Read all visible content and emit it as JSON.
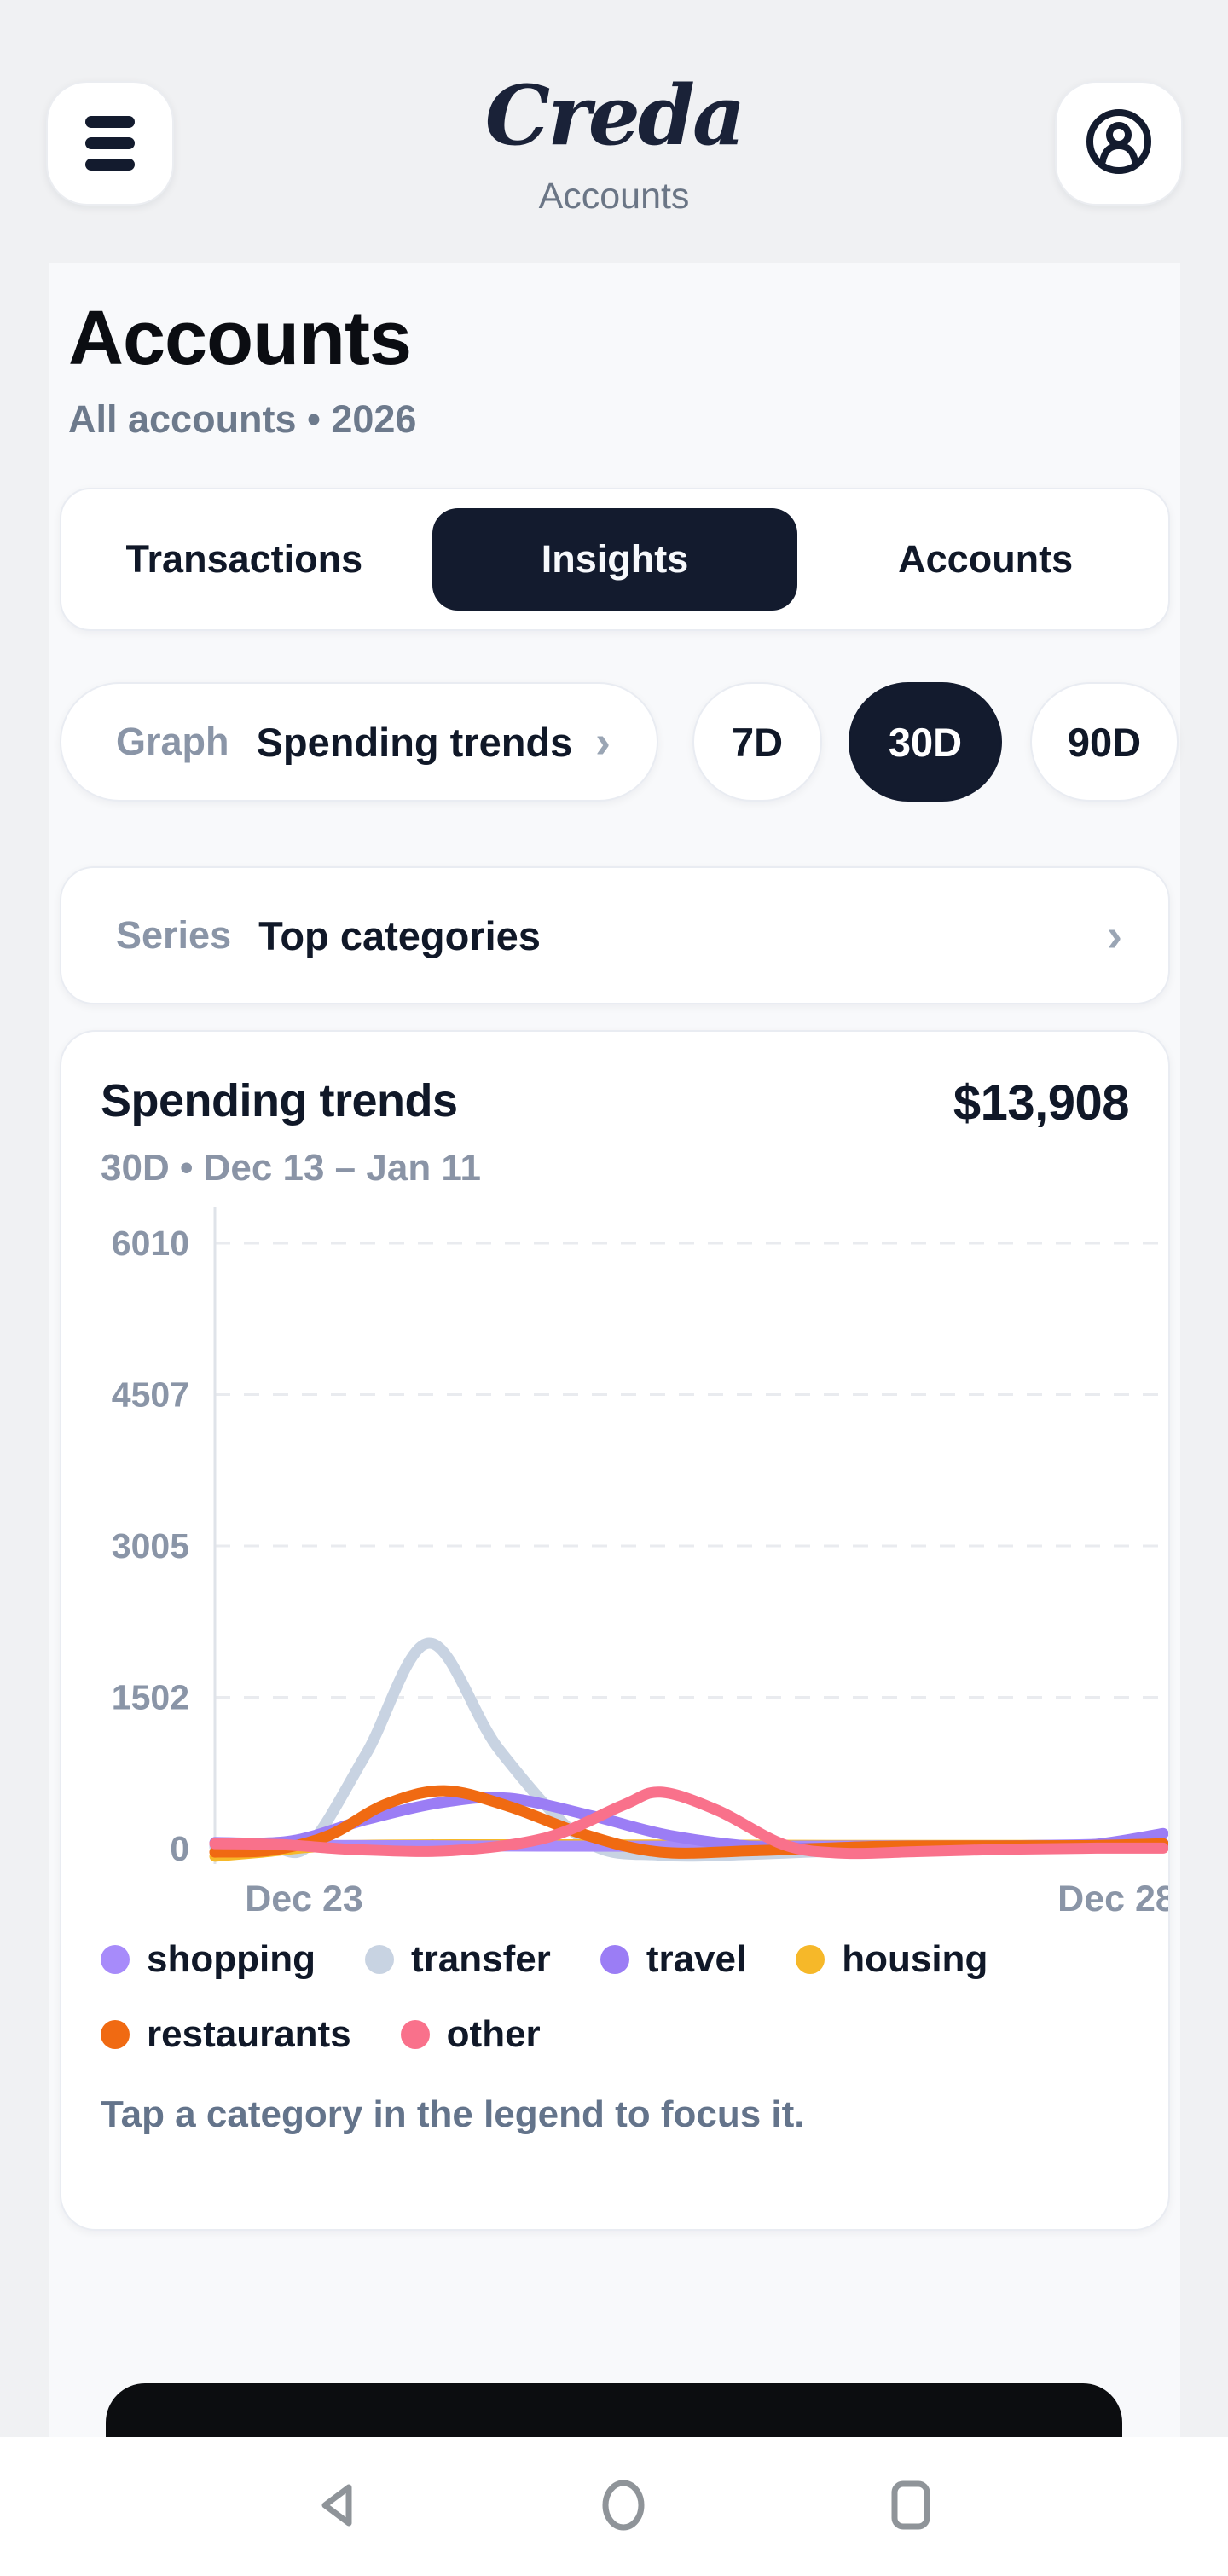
{
  "header": {
    "logo": "Creda",
    "subtitle": "Accounts",
    "menu_icon": "hamburger-icon",
    "profile_icon": "user-circle-icon"
  },
  "page": {
    "title": "Accounts",
    "subtitle": "All accounts • 2026"
  },
  "tabs": {
    "items": [
      "Transactions",
      "Insights",
      "Accounts"
    ],
    "active": "Insights"
  },
  "graph_selector": {
    "label": "Graph",
    "value": "Spending trends",
    "chevron": "›"
  },
  "range_buttons": {
    "items": [
      "7D",
      "30D",
      "90D"
    ],
    "active": "30D"
  },
  "series_selector": {
    "label": "Series",
    "value": "Top categories",
    "chevron": "›"
  },
  "chart_card": {
    "title": "Spending trends",
    "total": "$13,908",
    "subtitle": "30D • Dec 13 – Jan 11",
    "hint": "Tap a category in the legend to focus it."
  },
  "colors": {
    "accent_dark": "#131b2e",
    "panel_bg": "#f8f9fb",
    "body_bg": "#f0f1f3",
    "muted_text": "#8a94a6",
    "axis_text": "#8a95a7",
    "grid_line": "#e9ebef"
  },
  "chart_data": {
    "type": "line",
    "title": "Spending trends",
    "total_label": "$13,908",
    "period_label": "30D • Dec 13 – Jan 11",
    "ylim": [
      0,
      6010
    ],
    "y_ticks": [
      0,
      1502,
      3005,
      4507,
      6010
    ],
    "grid": "dashed-horizontal",
    "legend_position": "bottom",
    "x_tick_labels": [
      {
        "label": "Dec 23",
        "pos": 0.094
      },
      {
        "label": "Dec 28",
        "pos": 0.951
      }
    ],
    "series": [
      {
        "name": "transfer",
        "color": "#c8d3e2",
        "points": [
          [
            0,
            15
          ],
          [
            0.06,
            5
          ],
          [
            0.1,
            40
          ],
          [
            0.16,
            950
          ],
          [
            0.226,
            2040
          ],
          [
            0.3,
            980
          ],
          [
            0.39,
            80
          ],
          [
            0.47,
            -65
          ],
          [
            0.57,
            -55
          ],
          [
            0.68,
            -15
          ],
          [
            0.8,
            5
          ],
          [
            1,
            10
          ]
        ]
      },
      {
        "name": "housing",
        "color": "#f6b829",
        "points": [
          [
            0,
            -75
          ],
          [
            0.05,
            -35
          ],
          [
            0.12,
            25
          ],
          [
            0.25,
            38
          ],
          [
            0.45,
            36
          ],
          [
            0.65,
            32
          ],
          [
            0.85,
            32
          ],
          [
            1,
            38
          ]
        ]
      },
      {
        "name": "shopping",
        "color": "#a78bfa",
        "points": [
          [
            0,
            45
          ],
          [
            0.12,
            32
          ],
          [
            0.3,
            26
          ],
          [
            0.5,
            24
          ],
          [
            0.7,
            27
          ],
          [
            0.85,
            30
          ],
          [
            1,
            55
          ]
        ]
      },
      {
        "name": "travel",
        "color": "#9b7df5",
        "points": [
          [
            0,
            60
          ],
          [
            0.08,
            75
          ],
          [
            0.16,
            290
          ],
          [
            0.24,
            460
          ],
          [
            0.31,
            500
          ],
          [
            0.4,
            320
          ],
          [
            0.48,
            130
          ],
          [
            0.58,
            15
          ],
          [
            0.7,
            10
          ],
          [
            0.82,
            18
          ],
          [
            0.92,
            35
          ],
          [
            1,
            150
          ]
        ]
      },
      {
        "name": "restaurants",
        "color": "#f06a12",
        "points": [
          [
            0,
            -35
          ],
          [
            0.06,
            -15
          ],
          [
            0.12,
            130
          ],
          [
            0.18,
            440
          ],
          [
            0.242,
            575
          ],
          [
            0.31,
            420
          ],
          [
            0.39,
            140
          ],
          [
            0.47,
            -35
          ],
          [
            0.57,
            -20
          ],
          [
            0.7,
            22
          ],
          [
            0.82,
            28
          ],
          [
            0.92,
            30
          ],
          [
            1,
            48
          ]
        ]
      },
      {
        "name": "other",
        "color": "#f9718b",
        "points": [
          [
            0,
            50
          ],
          [
            0.07,
            40
          ],
          [
            0.15,
            -10
          ],
          [
            0.25,
            -20
          ],
          [
            0.35,
            110
          ],
          [
            0.43,
            430
          ],
          [
            0.47,
            560
          ],
          [
            0.53,
            380
          ],
          [
            0.6,
            40
          ],
          [
            0.66,
            -45
          ],
          [
            0.74,
            -30
          ],
          [
            0.84,
            -5
          ],
          [
            0.93,
            5
          ],
          [
            1,
            5
          ]
        ]
      }
    ],
    "legend_rows": [
      [
        "shopping",
        "transfer",
        "travel",
        "housing"
      ],
      [
        "restaurants",
        "other"
      ]
    ]
  }
}
